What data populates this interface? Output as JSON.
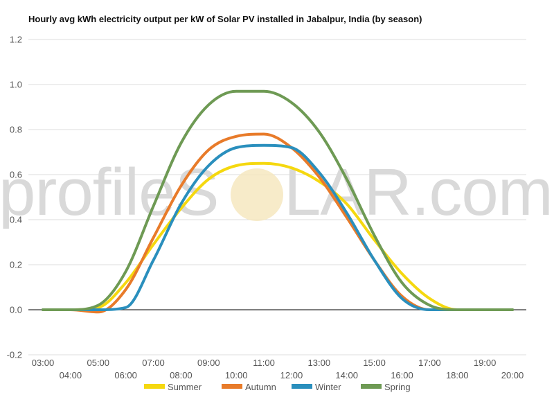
{
  "watermark": {
    "left": "profileS",
    "right": "LAR.com"
  },
  "chart_data": {
    "type": "line",
    "title": "Hourly avg kWh electricity output per kW of Solar PV installed in Jabalpur, India (by season)",
    "xlabel": "",
    "ylabel": "",
    "x": [
      "03:00",
      "04:00",
      "05:00",
      "06:00",
      "07:00",
      "08:00",
      "09:00",
      "10:00",
      "11:00",
      "12:00",
      "13:00",
      "14:00",
      "15:00",
      "16:00",
      "17:00",
      "18:00",
      "19:00",
      "20:00"
    ],
    "x_ticks_top": [
      "03:00",
      "05:00",
      "07:00",
      "09:00",
      "11:00",
      "13:00",
      "15:00",
      "17:00",
      "19:00"
    ],
    "x_ticks_bottom": [
      "04:00",
      "06:00",
      "08:00",
      "10:00",
      "12:00",
      "14:00",
      "16:00",
      "18:00",
      "20:00"
    ],
    "ylim": [
      -0.2,
      1.2
    ],
    "yticks": [
      "1.2",
      "1.0",
      "0.8",
      "0.6",
      "0.4",
      "0.2",
      "0.0",
      "-0.2"
    ],
    "grid": true,
    "legend_position": "bottom",
    "series": [
      {
        "name": "Summer",
        "color": "#f5d80f",
        "values": [
          0,
          0,
          0.01,
          0.12,
          0.29,
          0.45,
          0.58,
          0.64,
          0.65,
          0.63,
          0.57,
          0.47,
          0.31,
          0.16,
          0.05,
          0,
          0,
          0
        ]
      },
      {
        "name": "Autumn",
        "color": "#e87b2a",
        "values": [
          0,
          0,
          -0.01,
          0.09,
          0.32,
          0.55,
          0.71,
          0.77,
          0.78,
          0.72,
          0.59,
          0.41,
          0.22,
          0.06,
          0,
          0,
          0,
          0
        ]
      },
      {
        "name": "Winter",
        "color": "#2a8fbd",
        "values": [
          0,
          0,
          0,
          0.01,
          0.22,
          0.47,
          0.64,
          0.72,
          0.73,
          0.72,
          0.61,
          0.43,
          0.22,
          0.05,
          0,
          0,
          0,
          0
        ]
      },
      {
        "name": "Spring",
        "color": "#6e9a54",
        "values": [
          0,
          0,
          0.02,
          0.17,
          0.46,
          0.74,
          0.91,
          0.97,
          0.97,
          0.92,
          0.79,
          0.58,
          0.33,
          0.12,
          0.02,
          0,
          0,
          0
        ]
      }
    ]
  }
}
